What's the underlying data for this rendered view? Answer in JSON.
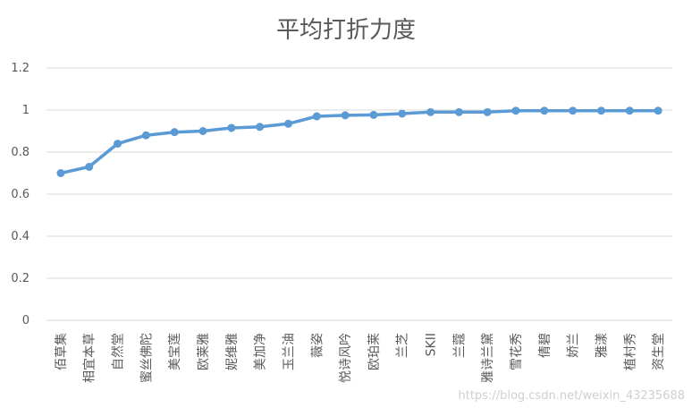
{
  "chart_data": {
    "type": "line",
    "title": "平均打折力度",
    "xlabel": "",
    "ylabel": "",
    "ylim": [
      0,
      1.2
    ],
    "yticks": [
      "0",
      "0.2",
      "0.4",
      "0.6",
      "0.8",
      "1",
      "1.2"
    ],
    "grid": true,
    "legend": "none",
    "color": "#5b9bd5",
    "categories": [
      "佰草集",
      "相宜本草",
      "自然堂",
      "蜜丝佛陀",
      "美宝莲",
      "欧莱雅",
      "妮维雅",
      "美加净",
      "玉兰油",
      "薇姿",
      "悦诗风吟",
      "欧珀莱",
      "兰芝",
      "SKII",
      "兰蔻",
      "雅诗兰黛",
      "雪花秀",
      "倩碧",
      "娇兰",
      "雅漾",
      "植村秀",
      "资生堂"
    ],
    "values": [
      0.7,
      0.73,
      0.84,
      0.88,
      0.895,
      0.9,
      0.915,
      0.92,
      0.935,
      0.97,
      0.975,
      0.977,
      0.983,
      0.99,
      0.99,
      0.99,
      0.997,
      0.997,
      0.997,
      0.997,
      0.997,
      0.997
    ]
  },
  "watermark": "https://blog.csdn.net/weixin_43235688"
}
